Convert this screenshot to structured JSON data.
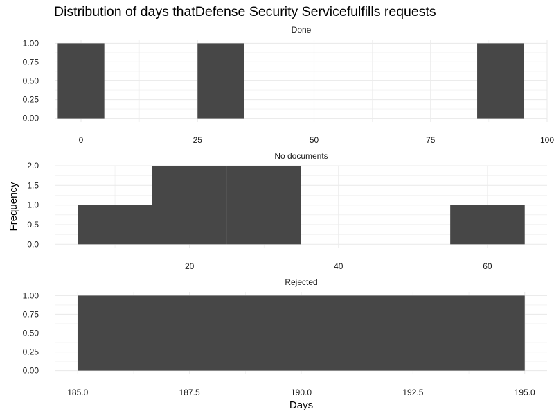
{
  "chart_data": {
    "type": "bar",
    "title": "Distribution of days thatDefense Security Servicefulfills requests",
    "xlabel": "Days",
    "ylabel": "Frequency",
    "grid": true,
    "bar_color": "#474747",
    "grid_color": "#ebebeb",
    "panels": [
      {
        "label": "Done",
        "xlim": [
          -5.5,
          100
        ],
        "ylim": [
          -0.05,
          1.05
        ],
        "x_ticks": [
          0,
          25,
          50,
          75,
          100
        ],
        "x_tick_labels": [
          "0",
          "25",
          "50",
          "75",
          "100"
        ],
        "y_ticks": [
          0,
          0.25,
          0.5,
          0.75,
          1
        ],
        "y_tick_labels": [
          "0.00",
          "0.25",
          "0.50",
          "0.75",
          "1.00"
        ],
        "bins": [
          {
            "x_start": -5,
            "x_end": 5,
            "count": 1
          },
          {
            "x_start": 25,
            "x_end": 35,
            "count": 1
          },
          {
            "x_start": 85,
            "x_end": 95,
            "count": 1
          }
        ]
      },
      {
        "label": "No documents",
        "xlim": [
          2,
          68
        ],
        "ylim": [
          -0.1,
          2.0
        ],
        "x_ticks": [
          20,
          40,
          60
        ],
        "x_tick_labels": [
          "20",
          "40",
          "60"
        ],
        "y_ticks": [
          0,
          0.5,
          1,
          1.5,
          2
        ],
        "y_tick_labels": [
          "0.0",
          "0.5",
          "1.0",
          "1.5",
          "2.0"
        ],
        "bins": [
          {
            "x_start": 5,
            "x_end": 15,
            "count": 1
          },
          {
            "x_start": 15,
            "x_end": 25,
            "count": 2
          },
          {
            "x_start": 25,
            "x_end": 35,
            "count": 2
          },
          {
            "x_start": 55,
            "x_end": 65,
            "count": 1
          }
        ]
      },
      {
        "label": "Rejected",
        "xlim": [
          184.5,
          195.5
        ],
        "ylim": [
          -0.05,
          1.05
        ],
        "x_ticks": [
          185,
          187.5,
          190,
          192.5,
          195
        ],
        "x_tick_labels": [
          "185.0",
          "187.5",
          "190.0",
          "192.5",
          "195.0"
        ],
        "y_ticks": [
          0,
          0.25,
          0.5,
          0.75,
          1
        ],
        "y_tick_labels": [
          "0.00",
          "0.25",
          "0.50",
          "0.75",
          "1.00"
        ],
        "bins": [
          {
            "x_start": 185,
            "x_end": 195,
            "count": 1
          }
        ]
      }
    ]
  }
}
